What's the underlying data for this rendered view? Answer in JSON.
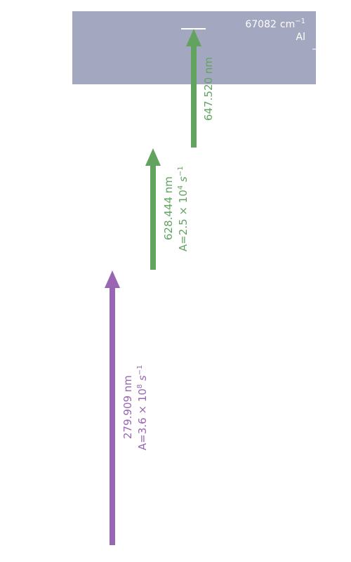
{
  "ionization_limit": {
    "energy_value": "67082",
    "energy_unit": "cm",
    "energy_exponent": "−1",
    "element": "Al",
    "band_color": "#a3a7bf"
  },
  "transitions": [
    {
      "wavelength": "279.909 nm",
      "rate_prefix": "A=3.6 × 10",
      "rate_exponent": "8",
      "rate_unit": " s",
      "rate_unit_exponent": "−1",
      "color": "#9966b3"
    },
    {
      "wavelength": "628.444 nm",
      "rate_prefix": "A=2.5 × 10",
      "rate_exponent": "4",
      "rate_unit": " s",
      "rate_unit_exponent": "−1",
      "color": "#62a35f"
    },
    {
      "wavelength": "647.520 nm",
      "color": "#62a35f"
    }
  ]
}
